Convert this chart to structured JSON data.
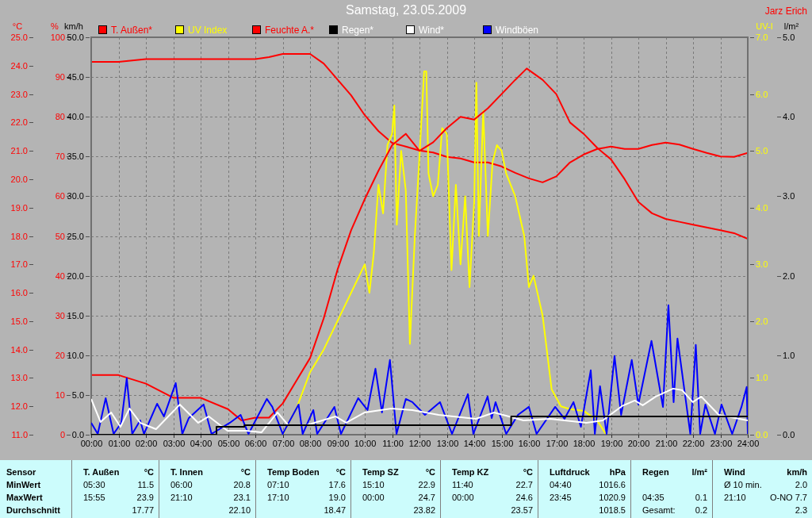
{
  "chart_data": [
    {
      "type": "line",
      "title": "Samstag, 23.05.2009",
      "ylabel": "°C",
      "y2label": "%",
      "y3label": "UV-I",
      "xlim": [
        0,
        24
      ],
      "xticks": [
        {
          "value": 0,
          "label": "00:00"
        },
        {
          "value": 1,
          "label": "01:00"
        },
        {
          "value": 2,
          "label": "02:00"
        },
        {
          "value": 3,
          "label": "03:00"
        },
        {
          "value": 4,
          "label": "04:00"
        },
        {
          "value": 5,
          "label": "05:00"
        },
        {
          "value": 6,
          "label": "06:00"
        },
        {
          "value": 7,
          "label": "07:00"
        },
        {
          "value": 8,
          "label": "08:00"
        },
        {
          "value": 9,
          "label": "09:00"
        },
        {
          "value": 10,
          "label": "10:00"
        },
        {
          "value": 11,
          "label": "11:00"
        },
        {
          "value": 12,
          "label": "12:00"
        },
        {
          "value": 13,
          "label": "13:00"
        },
        {
          "value": 14,
          "label": "14:00"
        },
        {
          "value": 15,
          "label": "15:00"
        },
        {
          "value": 16,
          "label": "16:00"
        },
        {
          "value": 17,
          "label": "17:00"
        },
        {
          "value": 18,
          "label": "18:00"
        },
        {
          "value": 19,
          "label": "19:00"
        },
        {
          "value": 20,
          "label": "20:00"
        },
        {
          "value": 21,
          "label": "21:00"
        },
        {
          "value": 22,
          "label": "22:00"
        },
        {
          "value": 23,
          "label": "23:00"
        },
        {
          "value": 24,
          "label": "24:00"
        }
      ],
      "ylim": [
        11,
        25
      ],
      "yticks": [
        {
          "value": 11,
          "label": "11.0"
        },
        {
          "value": 12,
          "label": "12.0"
        },
        {
          "value": 13,
          "label": "13.0"
        },
        {
          "value": 14,
          "label": "14.0"
        },
        {
          "value": 15,
          "label": "15.0"
        },
        {
          "value": 16,
          "label": "16.0"
        },
        {
          "value": 17,
          "label": "17.0"
        },
        {
          "value": 18,
          "label": "18.0"
        },
        {
          "value": 19,
          "label": "19.0"
        },
        {
          "value": 20,
          "label": "20.0"
        },
        {
          "value": 21,
          "label": "21.0"
        },
        {
          "value": 22,
          "label": "22.0"
        },
        {
          "value": 23,
          "label": "23.0"
        },
        {
          "value": 24,
          "label": "24.0"
        },
        {
          "value": 25,
          "label": "25.0"
        }
      ],
      "y2lim": [
        0,
        100
      ],
      "y2ticks": [
        0,
        10,
        20,
        30,
        40,
        50,
        60,
        70,
        80,
        90,
        100
      ],
      "y3lim": [
        0,
        7
      ],
      "y3ticks": [
        {
          "value": 0,
          "label": "0.0"
        },
        {
          "value": 1,
          "label": "1.0"
        },
        {
          "value": 2,
          "label": "2.0"
        },
        {
          "value": 3,
          "label": "3.0"
        },
        {
          "value": 4,
          "label": "4.0"
        },
        {
          "value": 5,
          "label": "5.0"
        },
        {
          "value": 6,
          "label": "6.0"
        },
        {
          "value": 7,
          "label": "7.0"
        }
      ],
      "grid": true,
      "legend": "top",
      "marker": "none",
      "series": [
        {
          "name": "T. Außen*",
          "color": "#ff0000",
          "x": [
            0,
            1,
            2,
            3,
            4,
            5,
            5.5,
            6,
            6.5,
            7,
            7.5,
            8,
            8.5,
            9,
            9.5,
            10,
            10.5,
            11,
            11.5,
            12,
            12.5,
            13,
            13.5,
            14,
            14.5,
            15,
            15.5,
            15.92,
            16.5,
            17,
            17.5,
            18,
            18.5,
            19,
            19.5,
            20,
            20.5,
            21,
            21.5,
            22,
            22.5,
            23,
            23.5,
            24
          ],
          "values": [
            13.1,
            13.1,
            12.8,
            12.3,
            12.3,
            11.9,
            11.5,
            11.6,
            11.6,
            12.1,
            12.9,
            13.7,
            15.1,
            16.8,
            18.2,
            19.3,
            20.3,
            21.2,
            21.6,
            21.0,
            21.3,
            21.8,
            22.2,
            22.1,
            22.5,
            23.0,
            23.5,
            23.9,
            23.5,
            23.0,
            22.0,
            21.6,
            21.1,
            20.7,
            20.0,
            19.2,
            18.8,
            18.6,
            18.5,
            18.4,
            18.3,
            18.2,
            18.1,
            17.9
          ]
        },
        {
          "name": "UV Index",
          "color": "#ffff00",
          "axis": "y3",
          "x": [
            0,
            7.0,
            7.5,
            8,
            8.5,
            9,
            9.5,
            10,
            10.17,
            10.33,
            10.5,
            10.67,
            10.83,
            11,
            11.08,
            11.17,
            11.33,
            11.5,
            11.65,
            11.83,
            12,
            12.17,
            12.25,
            12.33,
            12.5,
            12.67,
            12.83,
            13,
            13.17,
            13.33,
            13.5,
            13.67,
            13.83,
            14,
            14.08,
            14.17,
            14.33,
            14.5,
            14.67,
            14.83,
            15,
            15.17,
            15.5,
            15.83,
            16,
            16.17,
            16.5,
            16.83,
            17.17,
            17.5,
            18,
            18.5,
            18.83,
            24
          ],
          "values": [
            0,
            0,
            0.46,
            1.1,
            1.5,
            2.0,
            2.5,
            3.0,
            2.5,
            3.2,
            4.4,
            3.9,
            5.1,
            5.3,
            5.8,
            3.7,
            5.0,
            4.3,
            1.6,
            3.5,
            4.9,
            6.4,
            6.4,
            4.6,
            4.2,
            4.4,
            5.4,
            5.3,
            2.9,
            4.4,
            3.0,
            4.2,
            2.6,
            4.1,
            6.2,
            3.5,
            5.7,
            3.5,
            4.8,
            5.1,
            5.0,
            4.6,
            4.2,
            3.5,
            2.6,
            2.8,
            2.1,
            0.8,
            0.5,
            0.45,
            0.42,
            0.25,
            0,
            0
          ]
        },
        {
          "name": "Feuchte A.*",
          "color": "#ff0000",
          "axis": "y2",
          "x": [
            0,
            1,
            2,
            3,
            4,
            5,
            6,
            6.5,
            7,
            8,
            8.5,
            9,
            9.5,
            10,
            10.5,
            11,
            11.5,
            12,
            12.5,
            13,
            13.5,
            14,
            14.5,
            15,
            15.5,
            16,
            16.5,
            17,
            17.5,
            18,
            18.5,
            19,
            19.5,
            20,
            20.5,
            21,
            21.5,
            22,
            22.5,
            23,
            23.5,
            24
          ],
          "values": [
            93.8,
            93.8,
            94.5,
            94.5,
            94.5,
            94.5,
            94.5,
            95,
            95.8,
            95.8,
            93.4,
            89.4,
            85.4,
            80.4,
            76.4,
            73.4,
            72.5,
            71.5,
            71,
            69.9,
            69.5,
            68.5,
            68.5,
            67.5,
            65.9,
            64.5,
            63.5,
            65,
            68.5,
            70.5,
            71.9,
            72.5,
            71.9,
            71.9,
            72.9,
            73.5,
            73,
            71.9,
            70.9,
            70,
            69.9,
            70.9
          ]
        }
      ],
      "annotations": [
        "Jarz Erich",
        "Sensor",
        "MinWert",
        "MaxWert",
        "Durchschnitt",
        "T. Außen",
        "°C",
        "05:30",
        "11.5",
        "15:55",
        "23.9",
        "17.77",
        "T. Innen",
        "°C",
        "06:00",
        "20.8",
        "21:10",
        "23.1",
        "22.10",
        "Temp Boden",
        "°C",
        "07:10",
        "17.6",
        "17:10",
        "19.0",
        "18.47",
        "Temp SZ",
        "°C",
        "15:10",
        "22.9",
        "00:00",
        "24.7",
        "23.82",
        "Temp KZ",
        "°C",
        "11:40",
        "22.7",
        "00:00",
        "24.6",
        "23.57",
        "Luftdruck",
        "hPa",
        "04:40",
        "1016.6",
        "23:45",
        "1020.9",
        "1018.5",
        "Regen",
        "l/m²",
        "04:35",
        "0.1",
        "Gesamt:",
        "0.2",
        "Wind",
        "km/h",
        "Ø 10 min.",
        "2.0",
        "21:10",
        "O-NO 7.7",
        "2.3"
      ]
    },
    {
      "type": "line",
      "ylabel": "km/h",
      "y2label": "l/m²",
      "xlim": [
        0,
        24
      ],
      "ylim": [
        0,
        50
      ],
      "yticks": [
        {
          "value": 0,
          "label": "0.0"
        },
        {
          "value": 5,
          "label": "5.0"
        },
        {
          "value": 10,
          "label": "10.0"
        },
        {
          "value": 15,
          "label": "15.0"
        },
        {
          "value": 20,
          "label": "20.0"
        },
        {
          "value": 25,
          "label": "25.0"
        },
        {
          "value": 30,
          "label": "30.0"
        },
        {
          "value": 35,
          "label": "35.0"
        },
        {
          "value": 40,
          "label": "40.0"
        },
        {
          "value": 45,
          "label": "45.0"
        },
        {
          "value": 50,
          "label": "50.0"
        }
      ],
      "y2lim": [
        0,
        5
      ],
      "y2ticks": [
        {
          "value": 0,
          "label": "0.0"
        },
        {
          "value": 1,
          "label": "1.0"
        },
        {
          "value": 2,
          "label": "2.0"
        },
        {
          "value": 3,
          "label": "3.0"
        },
        {
          "value": 4,
          "label": "4.0"
        },
        {
          "value": 5,
          "label": "5.0"
        }
      ],
      "tick_labels": "y",
      "legend": "top",
      "marker": "none",
      "series": [
        {
          "name": "Regen*",
          "color": "#000000",
          "axis": "y2",
          "type": "step",
          "x": [
            0,
            4.58,
            5.6,
            15.35,
            24
          ],
          "values": [
            0,
            0.1,
            0.12,
            0.23,
            0.23
          ]
        },
        {
          "name": "Wind*",
          "color": "#ffffff",
          "x": [
            0,
            0.34,
            0.73,
            1.07,
            1.4,
            1.79,
            2.37,
            3.24,
            3.91,
            4.3,
            4.98,
            5.65,
            6.23,
            6.81,
            7.2,
            7.87,
            8.93,
            9.32,
            10.0,
            10.97,
            11.74,
            12.7,
            14.06,
            14.73,
            15.8,
            16.77,
            18.1,
            18.7,
            19.4,
            19.87,
            20.16,
            20.64,
            21.27,
            21.6,
            21.99,
            22.3,
            22.94,
            24
          ],
          "values": [
            4.5,
            1.6,
            2.8,
            1.0,
            3.3,
            1.5,
            0.7,
            3.8,
            1.5,
            2.3,
            0.5,
            0.5,
            0.3,
            2.8,
            1.2,
            1.2,
            2.3,
            1.5,
            2.8,
            3.3,
            3.1,
            2.5,
            2.0,
            2.8,
            1.8,
            2.0,
            1.5,
            1.8,
            3.6,
            4.3,
            3.7,
            4.8,
            5.8,
            5.6,
            4.1,
            4.8,
            2.5,
            1.8
          ]
        },
        {
          "name": "Windböen",
          "color": "#0000ff",
          "x": [
            0,
            0.24,
            0.53,
            0.82,
            1.1,
            1.3,
            1.5,
            1.79,
            1.93,
            2.41,
            2.66,
            3.09,
            3.33,
            3.57,
            4.11,
            4.4,
            5.07,
            5.46,
            5.75,
            6.42,
            6.62,
            7.0,
            7.58,
            7.73,
            8.12,
            8.26,
            8.89,
            9.13,
            9.76,
            10.1,
            10.39,
            10.63,
            10.92,
            11.16,
            11.5,
            11.74,
            12.2,
            12.75,
            13.19,
            13.77,
            13.97,
            14.49,
            14.64,
            14.78,
            15.17,
            15.6,
            16.0,
            16.28,
            16.96,
            17.3,
            17.63,
            17.9,
            18.26,
            18.41,
            18.6,
            18.84,
            19.13,
            19.37,
            19.76,
            20.0,
            20.48,
            20.9,
            21.1,
            21.29,
            21.43,
            21.9,
            22.1,
            22.26,
            22.45,
            22.8,
            23.04,
            23.43,
            23.77,
            23.96,
            24
          ],
          "values": [
            1.5,
            0.1,
            4.6,
            0.1,
            1.5,
            7.1,
            0.1,
            1.8,
            0.1,
            3.9,
            2.3,
            6.5,
            0.1,
            2.1,
            3.8,
            0.1,
            1.5,
            2.5,
            0.1,
            4.5,
            3.5,
            0.1,
            3.8,
            0.1,
            3.1,
            0.1,
            3.5,
            0.1,
            4.6,
            3.1,
            8.3,
            2.8,
            9.4,
            0.1,
            4.5,
            4.1,
            2.5,
            4.1,
            0.1,
            5.1,
            0.1,
            4.8,
            2.1,
            4.1,
            0.1,
            2.5,
            3.5,
            0.1,
            3.5,
            2,
            4.1,
            1.0,
            8.1,
            0.1,
            6.1,
            0.1,
            9.9,
            2.5,
            9.4,
            3.8,
            11.8,
            3.5,
            16.3,
            4.1,
            12.1,
            0.1,
            11.3,
            0.1,
            3.8,
            0.1,
            3.8,
            0.1,
            3.5,
            6.0,
            0.1
          ]
        }
      ]
    }
  ]
}
